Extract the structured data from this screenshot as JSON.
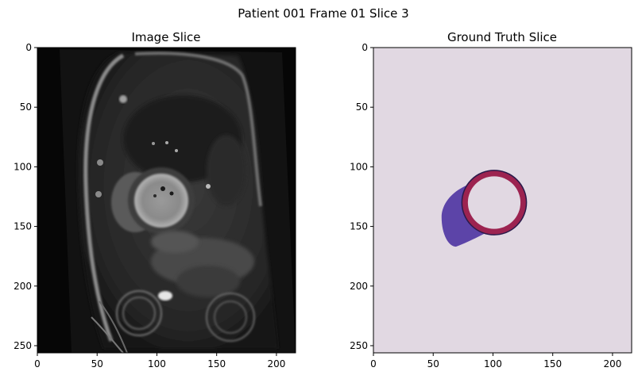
{
  "figure": {
    "suptitle": "Patient 001 Frame 01 Slice 3"
  },
  "chart_data": [
    {
      "type": "heatmap",
      "title": "Image Slice",
      "xlim": [
        0,
        216
      ],
      "ylim": [
        256,
        0
      ],
      "xticks": [
        0,
        50,
        100,
        150,
        200
      ],
      "yticks": [
        0,
        50,
        100,
        150,
        200,
        250
      ],
      "colormap": "gray",
      "content": "cardiac MRI short-axis slice, grayscale"
    },
    {
      "type": "heatmap",
      "title": "Ground Truth Slice",
      "xlim": [
        0,
        216
      ],
      "ylim": [
        256,
        0
      ],
      "xticks": [
        0,
        50,
        100,
        150,
        200
      ],
      "yticks": [
        0,
        50,
        100,
        150,
        200,
        250
      ],
      "colormap": "segmentation",
      "background_color": "#e1d8e2",
      "regions": [
        {
          "label_value": 1,
          "color": "#5c44a8",
          "approx_extent": {
            "x": [
              57,
              100
            ],
            "y": [
              112,
              167
            ]
          }
        },
        {
          "label_value": 2,
          "color": "#9c2350",
          "approx_center": [
            101,
            130
          ],
          "approx_outer_radius": 27,
          "approx_inner_radius": 22
        },
        {
          "label_value": 3,
          "color": "#e1d8e2",
          "approx_center": [
            101,
            130
          ],
          "approx_radius": 22
        }
      ]
    }
  ]
}
